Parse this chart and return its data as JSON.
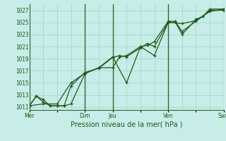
{
  "title": "Pression niveau de la mer( hPa )",
  "bg_color": "#c8ece8",
  "grid_color": "#a8d8d0",
  "line_color": "#1a5c1a",
  "ylim": [
    1010.5,
    1028.0
  ],
  "xlim": [
    0,
    7.0
  ],
  "yticks": [
    1011,
    1013,
    1015,
    1017,
    1019,
    1021,
    1023,
    1025,
    1027
  ],
  "xtick_labels": [
    "Mer",
    "",
    "Dim",
    "Jeu",
    "",
    "Ven",
    "",
    "Sam"
  ],
  "xtick_positions": [
    0,
    1,
    2,
    3,
    4,
    5,
    6,
    7
  ],
  "vline_positions": [
    0,
    2,
    3,
    5,
    7
  ],
  "minor_vgrid": [
    0.0,
    0.5,
    1.0,
    1.5,
    2.0,
    2.5,
    3.0,
    3.5,
    4.0,
    4.5,
    5.0,
    5.5,
    6.0,
    6.5,
    7.0
  ],
  "line1_x": [
    0.0,
    0.25,
    0.5,
    0.75,
    1.0,
    1.25,
    1.5,
    2.0,
    2.5,
    3.0,
    3.25,
    3.5,
    4.0,
    4.25,
    4.5,
    5.0,
    5.25,
    5.5,
    6.0,
    6.25,
    6.5,
    7.0
  ],
  "line1_y": [
    1011.2,
    1012.8,
    1012.2,
    1011.2,
    1011.2,
    1011.2,
    1011.5,
    1016.5,
    1017.5,
    1017.5,
    1019.3,
    1019.5,
    1021.0,
    1021.2,
    1021.8,
    1025.2,
    1025.1,
    1023.0,
    1025.5,
    1026.0,
    1027.0,
    1027.0
  ],
  "line2_x": [
    0.0,
    0.25,
    0.5,
    0.75,
    1.0,
    1.25,
    1.5,
    2.0,
    2.5,
    3.0,
    3.25,
    3.5,
    4.0,
    4.25,
    4.5,
    5.0,
    5.25,
    5.5,
    6.0,
    6.25,
    6.5,
    7.0
  ],
  "line2_y": [
    1011.2,
    1012.8,
    1011.8,
    1011.2,
    1011.2,
    1011.2,
    1014.5,
    1016.7,
    1017.4,
    1019.2,
    1019.5,
    1019.3,
    1020.8,
    1021.5,
    1021.0,
    1025.0,
    1025.2,
    1023.5,
    1025.2,
    1026.0,
    1027.2,
    1027.2
  ],
  "line3_x": [
    0.0,
    0.5,
    1.0,
    1.5,
    2.0,
    2.5,
    3.0,
    3.5,
    4.0,
    4.5,
    5.0,
    5.5,
    6.0,
    6.5,
    7.0
  ],
  "line3_y": [
    1011.2,
    1011.5,
    1011.5,
    1015.0,
    1016.6,
    1017.5,
    1019.3,
    1015.0,
    1021.0,
    1019.5,
    1025.0,
    1024.8,
    1025.3,
    1026.8,
    1027.2
  ]
}
